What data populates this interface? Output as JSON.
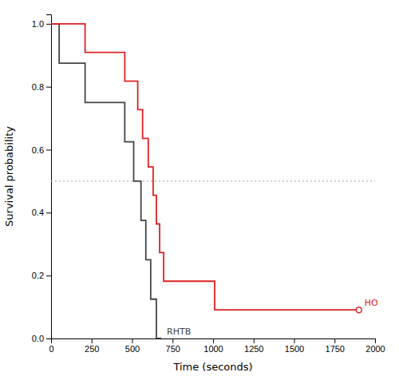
{
  "chart_data": {
    "type": "line",
    "xlabel": "Time (seconds)",
    "ylabel": "Survival probability",
    "line_style": "step",
    "xlim": [
      0,
      2000
    ],
    "ylim": [
      0.0,
      1.03
    ],
    "xticks": [
      0,
      250,
      500,
      750,
      1000,
      1250,
      1500,
      1750,
      2000
    ],
    "yticks": [
      {
        "value": 0.0,
        "label": "0.0"
      },
      0.2,
      0.4,
      0.6,
      0.8,
      {
        "value": 1.0,
        "label": "1.0"
      }
    ],
    "grid": false,
    "reference_lines": [
      {
        "y": 0.5,
        "color": "#b0b0b0",
        "line_style": "dotted"
      }
    ],
    "series": [
      {
        "name": "RHTB",
        "color": "#444444",
        "x": [
          0,
          50,
          210,
          455,
          510,
          555,
          585,
          615,
          650,
          680
        ],
        "values": [
          1.0,
          0.875,
          0.75,
          0.625,
          0.5,
          0.375,
          0.25,
          0.125,
          0.0,
          0.0
        ]
      },
      {
        "name": "HO",
        "color": "#dd2222",
        "x": [
          0,
          210,
          455,
          535,
          565,
          600,
          630,
          650,
          670,
          695,
          720,
          1010,
          1900
        ],
        "values": [
          1.0,
          0.909,
          0.818,
          0.727,
          0.636,
          0.545,
          0.455,
          0.364,
          0.273,
          0.182,
          0.182,
          0.091,
          0.091
        ],
        "censor_x": [
          1900
        ],
        "censor_y": [
          0.091
        ]
      }
    ]
  }
}
